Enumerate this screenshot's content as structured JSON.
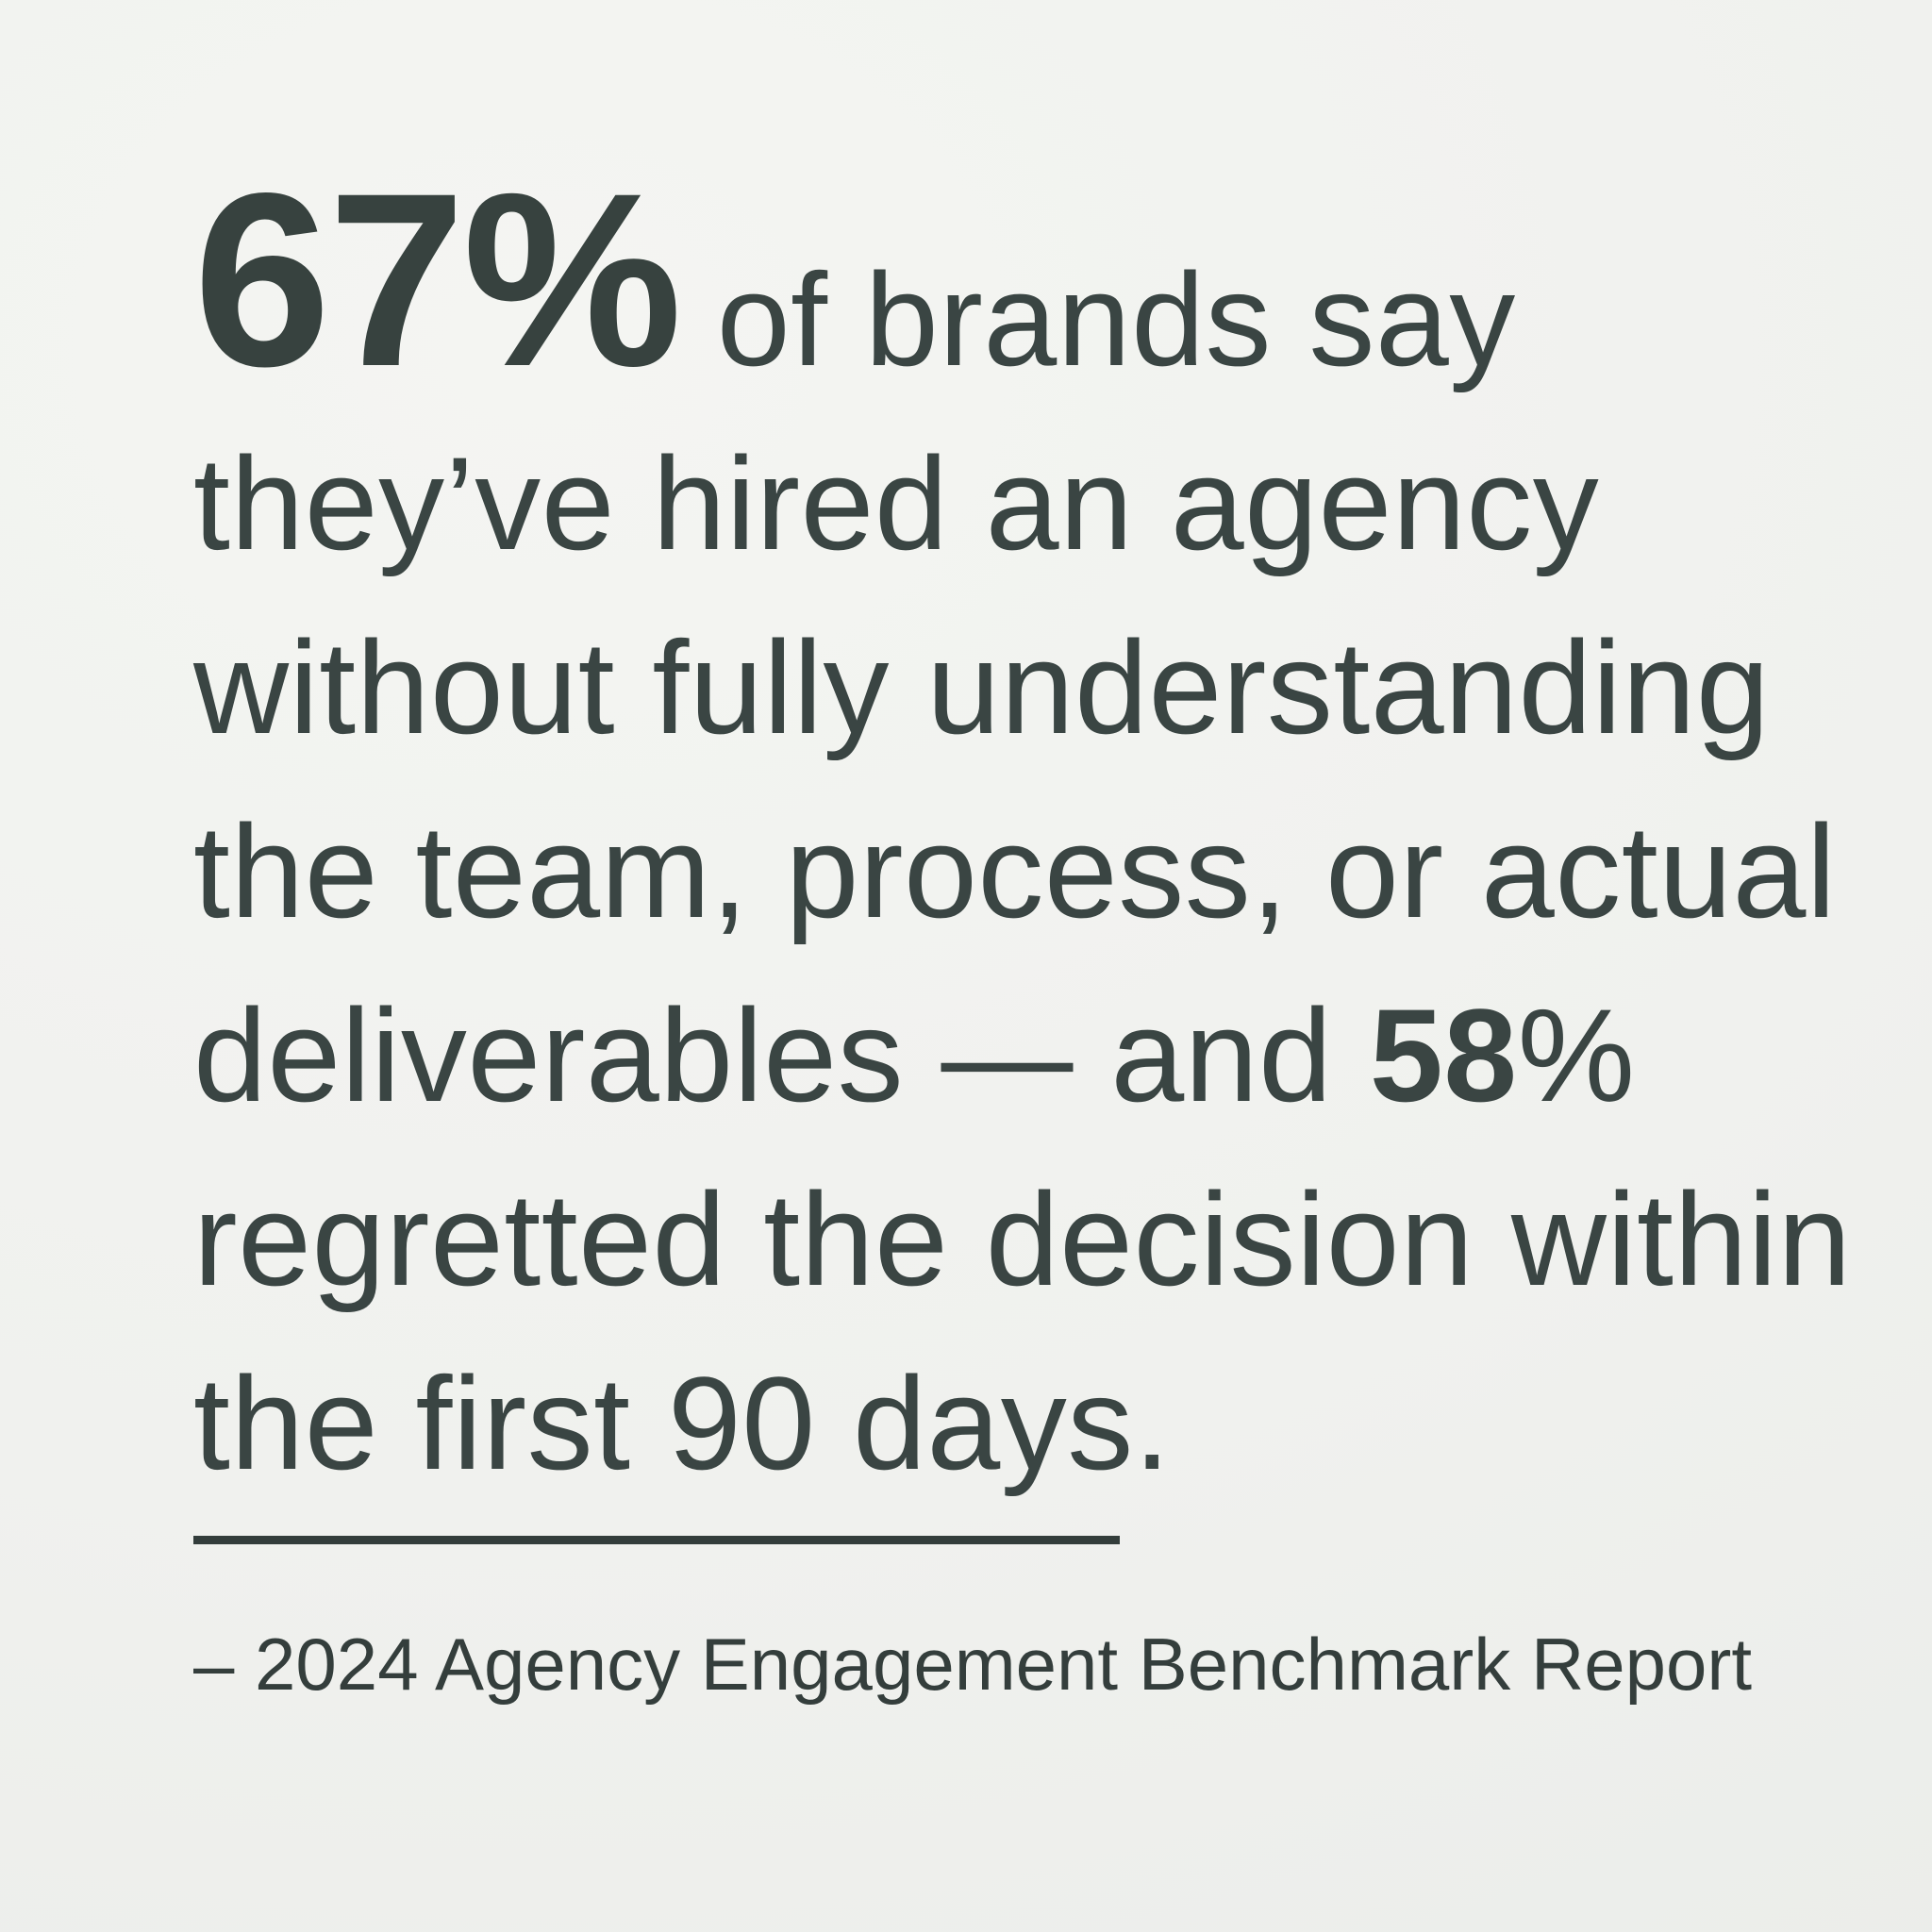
{
  "colors": {
    "background": "#f0f1ee",
    "text": "#3a4543",
    "stat": "#37423f",
    "rule": "#333d3b"
  },
  "quote": {
    "line1": {
      "stat": "67%",
      "rest": " of brands say"
    },
    "line2": "they’ve hired an agency",
    "line3": "without fully understanding",
    "line4": "the team, process, or actual",
    "line5": {
      "pre": "deliverables — and ",
      "stat": "58",
      "post": "%"
    },
    "line6": "regretted the decision within",
    "line7": "the first 90 days."
  },
  "attribution": {
    "text": "– 2024 Agency Engagement Benchmark Report"
  }
}
